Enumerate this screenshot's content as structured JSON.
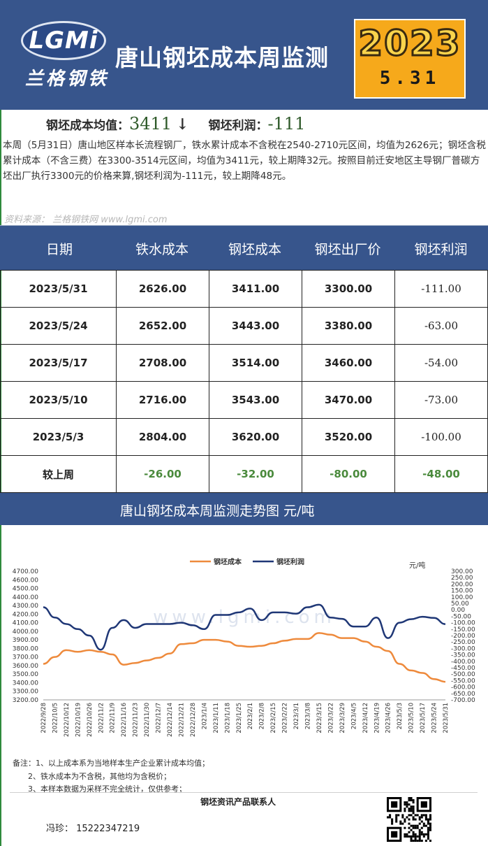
{
  "header": {
    "logo_text": "LGMi",
    "logo_cn": "兰格钢铁",
    "title": "唐山钢坯成本周监测",
    "year": "2023",
    "day": "5.31"
  },
  "summary": {
    "cost_label": "钢坯成本均值：",
    "cost_value": "3411",
    "cost_arrow": "↓",
    "profit_label": "钢坯利润：",
    "profit_value": "-111",
    "description": "本周（5月31日）唐山地区样本长流程钢厂，铁水累计成本不含税在2540-2710元区间，均值为2626元；钢坯含税累计成本（不含三费）在3300-3514元区间，均值为3411元，较上期降32元。按照目前迁安地区主导钢厂普碳方坯出厂执行3300元的价格来算,钢坯利润为-111元，较上期降48元。",
    "source": "资料来源：  兰格钢铁网 www.lgmi.com"
  },
  "table": {
    "headers": [
      "日期",
      "铁水成本",
      "钢坯成本",
      "钢坯出厂价",
      "钢坯利润"
    ],
    "rows": [
      [
        "2023/5/31",
        "2626.00",
        "3411.00",
        "3300.00",
        "-111.00"
      ],
      [
        "2023/5/24",
        "2652.00",
        "3443.00",
        "3380.00",
        "-63.00"
      ],
      [
        "2023/5/17",
        "2708.00",
        "3514.00",
        "3460.00",
        "-54.00"
      ],
      [
        "2023/5/10",
        "2716.00",
        "3543.00",
        "3470.00",
        "-73.00"
      ],
      [
        "2023/5/3",
        "2804.00",
        "3620.00",
        "3520.00",
        "-100.00"
      ]
    ],
    "compare_row": [
      "较上周",
      "-26.00",
      "-32.00",
      "-80.00",
      "-48.00"
    ]
  },
  "chart_section": {
    "title": "唐山钢坯成本周监测走势图      元/吨"
  },
  "chart_data": {
    "type": "line",
    "unit_right": "元/吨",
    "watermark": "www.lgmi.com",
    "colors": {
      "cost": "#ee8a3c",
      "profit": "#1f3776"
    },
    "y_left": {
      "min": 3200,
      "max": 4700,
      "step": 100
    },
    "y_right": {
      "min": -700,
      "max": 300,
      "step": 50
    },
    "x": [
      "2022/9/28",
      "2022/10/5",
      "2022/10/12",
      "2022/10/19",
      "2022/10/26",
      "2022/11/2",
      "2022/11/9",
      "2022/11/16",
      "2022/11/23",
      "2022/11/30",
      "2022/12/7",
      "2022/12/14",
      "2022/12/21",
      "2022/12/28",
      "2023/1/4",
      "2023/1/11",
      "2023/1/18",
      "2023/1/25",
      "2023/2/1",
      "2023/2/8",
      "2023/2/15",
      "2023/2/22",
      "2023/3/1",
      "2023/3/8",
      "2023/3/15",
      "2023/3/22",
      "2023/3/29",
      "2023/4/5",
      "2023/4/12",
      "2023/4/19",
      "2023/4/26",
      "2023/5/3",
      "2023/5/10",
      "2023/5/17",
      "2023/5/24",
      "2023/5/31"
    ],
    "series": [
      {
        "name": "钢坯成本",
        "axis": "left",
        "values": [
          3620,
          3700,
          3780,
          3760,
          3780,
          3760,
          3730,
          3610,
          3630,
          3660,
          3690,
          3740,
          3850,
          3860,
          3900,
          3900,
          3880,
          3830,
          3820,
          3830,
          3860,
          3890,
          3910,
          3910,
          3980,
          3960,
          3920,
          3920,
          3880,
          3820,
          3770,
          3620,
          3543,
          3514,
          3443,
          3411
        ]
      },
      {
        "name": "钢坯利润",
        "axis": "right",
        "values": [
          20,
          -60,
          -110,
          -150,
          -200,
          -310,
          -140,
          -80,
          -140,
          -110,
          -110,
          -110,
          -100,
          -120,
          -150,
          -40,
          -40,
          -20,
          10,
          -80,
          -20,
          -20,
          -30,
          20,
          40,
          -60,
          -70,
          -130,
          -130,
          -60,
          -220,
          -100,
          -73,
          -54,
          -63,
          -111
        ]
      }
    ]
  },
  "notes": {
    "line1": "备注：1、以上成本系为当地样本生产企业累计成本均值；",
    "line2": "2、铁水成本为不含税，其他均为含税价；",
    "line3": "3、本样本数据为采样不完全统计，仅供参考；"
  },
  "contact": {
    "title": "钢坯资讯产品联系人",
    "person": "冯珍：  15222347219"
  }
}
